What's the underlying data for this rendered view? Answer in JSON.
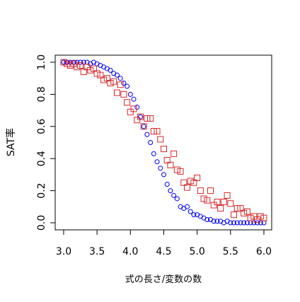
{
  "chart_data": {
    "type": "scatter",
    "x_label": "式の長さ/変数の数",
    "y_label": "SAT率",
    "x": [
      3.0,
      3.05,
      3.1,
      3.15,
      3.2,
      3.25,
      3.3,
      3.35,
      3.4,
      3.45,
      3.5,
      3.55,
      3.6,
      3.65,
      3.7,
      3.75,
      3.8,
      3.85,
      3.9,
      3.95,
      4.0,
      4.05,
      4.1,
      4.15,
      4.2,
      4.25,
      4.3,
      4.35,
      4.4,
      4.45,
      4.5,
      4.55,
      4.6,
      4.65,
      4.7,
      4.75,
      4.8,
      4.85,
      4.9,
      4.95,
      5.0,
      5.05,
      5.1,
      5.15,
      5.2,
      5.25,
      5.3,
      5.35,
      5.4,
      5.45,
      5.5,
      5.55,
      5.6,
      5.65,
      5.7,
      5.75,
      5.8,
      5.85,
      5.9,
      5.95,
      6.0
    ],
    "series": [
      {
        "color": "#0000ff",
        "marker": "circle",
        "values": [
          1,
          1,
          1,
          1,
          1,
          1,
          1,
          1,
          0.99,
          1,
          0.99,
          0.98,
          0.97,
          0.96,
          0.95,
          0.93,
          0.92,
          0.9,
          0.87,
          0.85,
          0.8,
          0.77,
          0.72,
          0.66,
          0.6,
          0.55,
          0.5,
          0.43,
          0.38,
          0.34,
          0.3,
          0.24,
          0.2,
          0.17,
          0.15,
          0.1,
          0.09,
          0.1,
          0.07,
          0.05,
          0.05,
          0.04,
          0.03,
          0.02,
          0.02,
          0.01,
          0.01,
          0.01,
          0,
          0.01,
          0,
          0,
          0,
          0,
          0,
          0,
          0,
          0,
          0,
          0,
          0
        ]
      },
      {
        "color": "#d62728",
        "marker": "square",
        "values": [
          1,
          0.99,
          0.98,
          0.99,
          0.97,
          0.98,
          0.94,
          0.97,
          0.95,
          0.96,
          0.93,
          0.92,
          0.89,
          0.9,
          0.87,
          0.88,
          0.81,
          0.86,
          0.8,
          0.75,
          0.69,
          0.71,
          0.64,
          0.66,
          0.6,
          0.65,
          0.65,
          0.57,
          0.57,
          0.52,
          0.46,
          0.39,
          0.36,
          0.43,
          0.33,
          0.32,
          0.25,
          0.22,
          0.26,
          0.25,
          0.28,
          0.2,
          0.15,
          0.14,
          0.2,
          0.11,
          0.13,
          0.09,
          0.13,
          0.17,
          0.12,
          0.05,
          0.09,
          0.09,
          0.06,
          0.07,
          0.03,
          0.04,
          0.02,
          0.04,
          0.03
        ]
      }
    ],
    "xlim": [
      2.873,
      6.117
    ],
    "ylim": [
      -0.044,
      1.044
    ],
    "xticks": [
      {
        "value": 3,
        "label": "3.0"
      },
      3.5,
      {
        "value": 4,
        "label": "4.0"
      },
      4.5,
      {
        "value": 5,
        "label": "5.0"
      },
      5.5,
      {
        "value": 6,
        "label": "6.0"
      }
    ],
    "yticks": [
      {
        "value": 0,
        "label": "0.0"
      },
      0.2,
      0.4,
      0.6,
      0.8,
      {
        "value": 1,
        "label": "1.0"
      }
    ]
  }
}
